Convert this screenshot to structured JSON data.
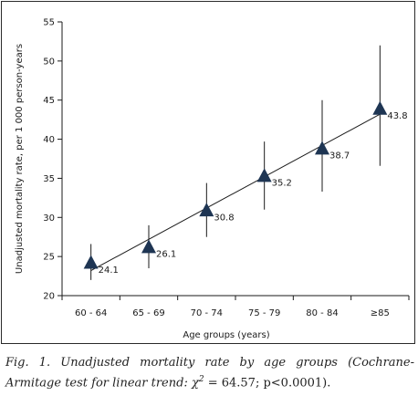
{
  "chart_data": {
    "type": "line",
    "title": "",
    "xlabel": "Age groups (years)",
    "ylabel": "Unadjusted mortality rate, per 1 000 person-years",
    "categories": [
      "60 - 64",
      "65 - 69",
      "70 - 74",
      "75 - 79",
      "80 - 84",
      "≥85"
    ],
    "values": [
      24.1,
      26.1,
      30.8,
      35.2,
      38.7,
      43.8
    ],
    "data_labels": [
      "24.1",
      "26.1",
      "30.8",
      "35.2",
      "38.7",
      "43.8"
    ],
    "error_low": [
      22.0,
      23.5,
      27.5,
      31.0,
      33.3,
      36.6
    ],
    "error_high": [
      26.6,
      29.0,
      34.4,
      39.7,
      45.0,
      52.0
    ],
    "trend_line": {
      "start": 23.2,
      "end": 43.2
    },
    "ylim": [
      20,
      55
    ],
    "yticks": [
      "20",
      "25",
      "30",
      "35",
      "40",
      "45",
      "50",
      "55"
    ],
    "marker": "triangle",
    "grid": false,
    "legend": "none"
  },
  "caption": {
    "part1": "Fig. 1. Unadjusted mortality rate by age groups (Cochrane-Armitage test for linear trend: χ",
    "sup": "2",
    "part2": " = 64.57; p<0.0001)."
  },
  "colors": {
    "marker": "#1e3553",
    "line": "#1a1a1a",
    "border": "#2a2a2a"
  }
}
